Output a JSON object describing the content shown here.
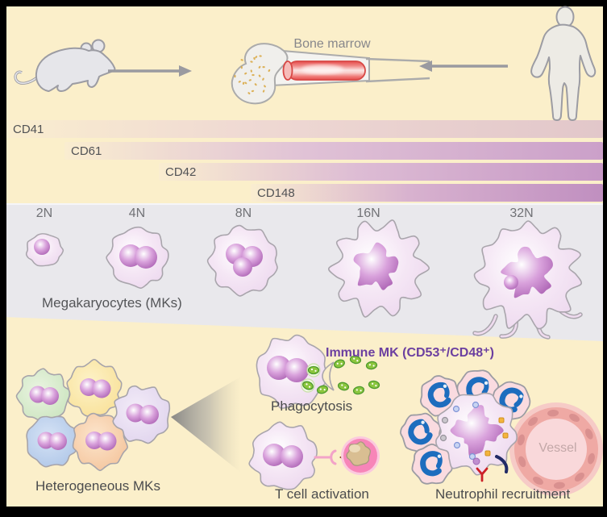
{
  "colors": {
    "background": "#FBEFCA",
    "panel_gray": "#E9E8EC",
    "immune_title_purple": "#6B3FA0",
    "bar_gradient_ends": [
      "#E2C7CA",
      "#CBA0C9",
      "#C697C5",
      "#C08FC0"
    ],
    "mk_cell_fill": "#EDDAEF",
    "mk_nucleus_purple": "#AF64B6",
    "vessel_wall_pink": "#EFA9A4",
    "neutrophil_nucleus_blue": "#1D6DBE",
    "bacteria_green": "#8CC63E",
    "marrow_red": "#E64C4C"
  },
  "top": {
    "bone_marrow_label": "Bone marrow",
    "mouse_icon": "mouse-silhouette",
    "human_icon": "human-silhouette",
    "arrow_icon": "gray-arrow"
  },
  "marker_bars": [
    {
      "label": "CD41"
    },
    {
      "label": "CD61"
    },
    {
      "label": "CD42"
    },
    {
      "label": "CD148"
    }
  ],
  "ploidy": {
    "stages": [
      "2N",
      "4N",
      "8N",
      "16N",
      "32N"
    ],
    "caption": "Megakaryocytes (MKs)"
  },
  "bottom": {
    "heterogeneous_label": "Heterogeneous MKs",
    "immune_mk_title": "Immune MK (CD53⁺/CD48⁺)",
    "functions": [
      {
        "label": "Phagocytosis"
      },
      {
        "label": "T cell activation"
      },
      {
        "label": "Neutrophil recruitment"
      }
    ],
    "vessel_label": "Vessel",
    "cone_icon": "zoom-cone"
  }
}
